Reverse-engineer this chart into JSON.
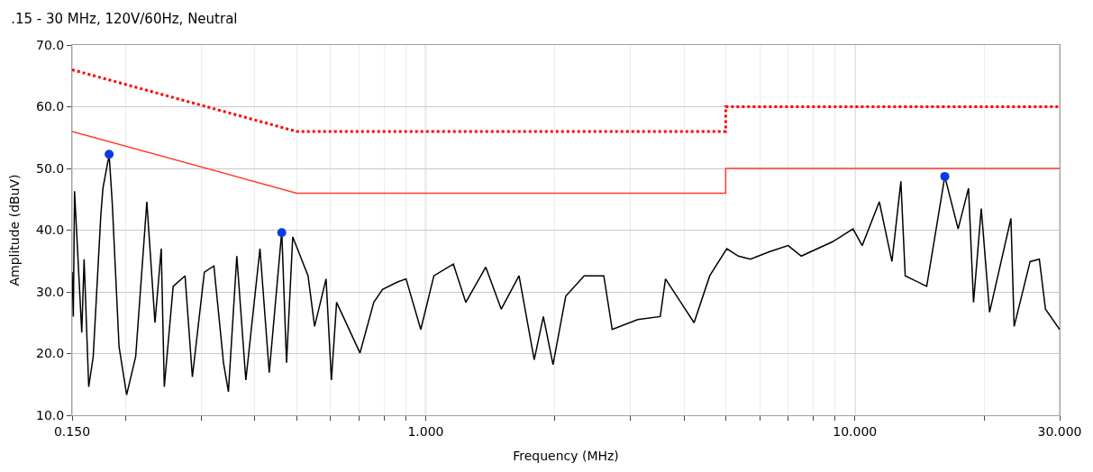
{
  "chart_data": {
    "type": "line",
    "title": ".15 - 30 MHz, 120V/60Hz, Neutral",
    "xlabel": "Frequency (MHz)",
    "ylabel": "Amplitude (dBuV)",
    "log": "x",
    "grid": true,
    "xlim": [
      0.15,
      30
    ],
    "ylim": [
      10,
      70
    ],
    "xticks": [
      {
        "value": 0.15,
        "label": "0.150"
      },
      {
        "value": 0.2,
        "label": null
      },
      {
        "value": 0.3,
        "label": null
      },
      {
        "value": 0.4,
        "label": null
      },
      {
        "value": 0.5,
        "label": null
      },
      {
        "value": 0.6,
        "label": null
      },
      {
        "value": 0.7,
        "label": null
      },
      {
        "value": 0.8,
        "label": null
      },
      {
        "value": 0.9,
        "label": null
      },
      {
        "value": 1,
        "label": "1.000"
      },
      {
        "value": 2,
        "label": null
      },
      {
        "value": 3,
        "label": null
      },
      {
        "value": 4,
        "label": null
      },
      {
        "value": 5,
        "label": null
      },
      {
        "value": 6,
        "label": null
      },
      {
        "value": 7,
        "label": null
      },
      {
        "value": 8,
        "label": null
      },
      {
        "value": 9,
        "label": null
      },
      {
        "value": 10,
        "label": "10.000"
      },
      {
        "value": 20,
        "label": null
      },
      {
        "value": 30,
        "label": "30.000"
      }
    ],
    "yticks": [
      {
        "value": 10,
        "label": "10.0"
      },
      {
        "value": 20,
        "label": "20.0"
      },
      {
        "value": 30,
        "label": "30.0"
      },
      {
        "value": 40,
        "label": "40.0"
      },
      {
        "value": 50,
        "label": "50.0"
      },
      {
        "value": 60,
        "label": "60.0"
      },
      {
        "value": 70,
        "label": "70.0"
      }
    ],
    "series": [
      {
        "color": "#ff0000",
        "line_style": "dotted",
        "x": [
          0.15,
          0.5,
          5,
          5,
          30
        ],
        "values": [
          66,
          56,
          56,
          60,
          60
        ]
      },
      {
        "color": "#ff3c2c",
        "line_style": "solid",
        "x": [
          0.15,
          0.5,
          5,
          5,
          30
        ],
        "values": [
          56,
          46,
          46,
          50,
          50
        ]
      },
      {
        "color": "#000000",
        "line_style": "solid",
        "x": [
          0.15,
          0.151,
          0.152,
          0.158,
          0.16,
          0.164,
          0.168,
          0.175,
          0.177,
          0.183,
          0.186,
          0.193,
          0.201,
          0.211,
          0.224,
          0.234,
          0.242,
          0.246,
          0.258,
          0.275,
          0.286,
          0.305,
          0.321,
          0.338,
          0.347,
          0.363,
          0.381,
          0.411,
          0.432,
          0.462,
          0.474,
          0.49,
          0.532,
          0.551,
          0.586,
          0.603,
          0.62,
          0.703,
          0.757,
          0.793,
          0.86,
          0.9,
          0.974,
          1.045,
          1.16,
          1.24,
          1.38,
          1.5,
          1.65,
          1.79,
          1.88,
          1.98,
          2.12,
          2.34,
          2.6,
          2.72,
          3.12,
          3.52,
          3.62,
          4.22,
          4.59,
          5.03,
          5.35,
          5.71,
          6.32,
          6.99,
          7.5,
          8.86,
          9.9,
          10.4,
          11.4,
          12.2,
          12.8,
          13.1,
          14.7,
          16.2,
          17.4,
          18.4,
          18.9,
          19.7,
          20.6,
          23.1,
          23.5,
          25.6,
          26.9,
          27.8,
          30
        ],
        "values": [
          33.2,
          26.0,
          46.3,
          23.4,
          35.3,
          14.6,
          19.5,
          42.4,
          46.8,
          52.2,
          44.6,
          21.1,
          13.3,
          19.5,
          44.6,
          25.0,
          37.0,
          14.6,
          30.9,
          32.6,
          16.2,
          33.2,
          34.2,
          18.5,
          13.8,
          35.8,
          15.7,
          37.0,
          16.9,
          39.8,
          18.5,
          38.9,
          32.6,
          24.4,
          32.1,
          15.7,
          28.3,
          20.1,
          28.3,
          30.4,
          31.6,
          32.1,
          23.9,
          32.6,
          34.5,
          28.3,
          34.0,
          27.2,
          32.6,
          19.0,
          26.0,
          18.2,
          29.3,
          32.6,
          32.6,
          23.9,
          25.5,
          26.0,
          32.1,
          25.0,
          32.6,
          37.0,
          35.8,
          35.3,
          36.5,
          37.5,
          35.8,
          38.1,
          40.2,
          37.5,
          44.6,
          34.9,
          47.9,
          32.6,
          30.9,
          48.7,
          40.2,
          46.8,
          28.3,
          43.5,
          26.7,
          41.9,
          24.4,
          34.9,
          35.3,
          27.2,
          23.9
        ]
      },
      {
        "type": "scatter",
        "color": "#0a3ce6",
        "marker": "circle",
        "x": [
          0.183,
          0.462,
          16.2
        ],
        "values": [
          52.3,
          39.6,
          48.7
        ]
      }
    ]
  }
}
